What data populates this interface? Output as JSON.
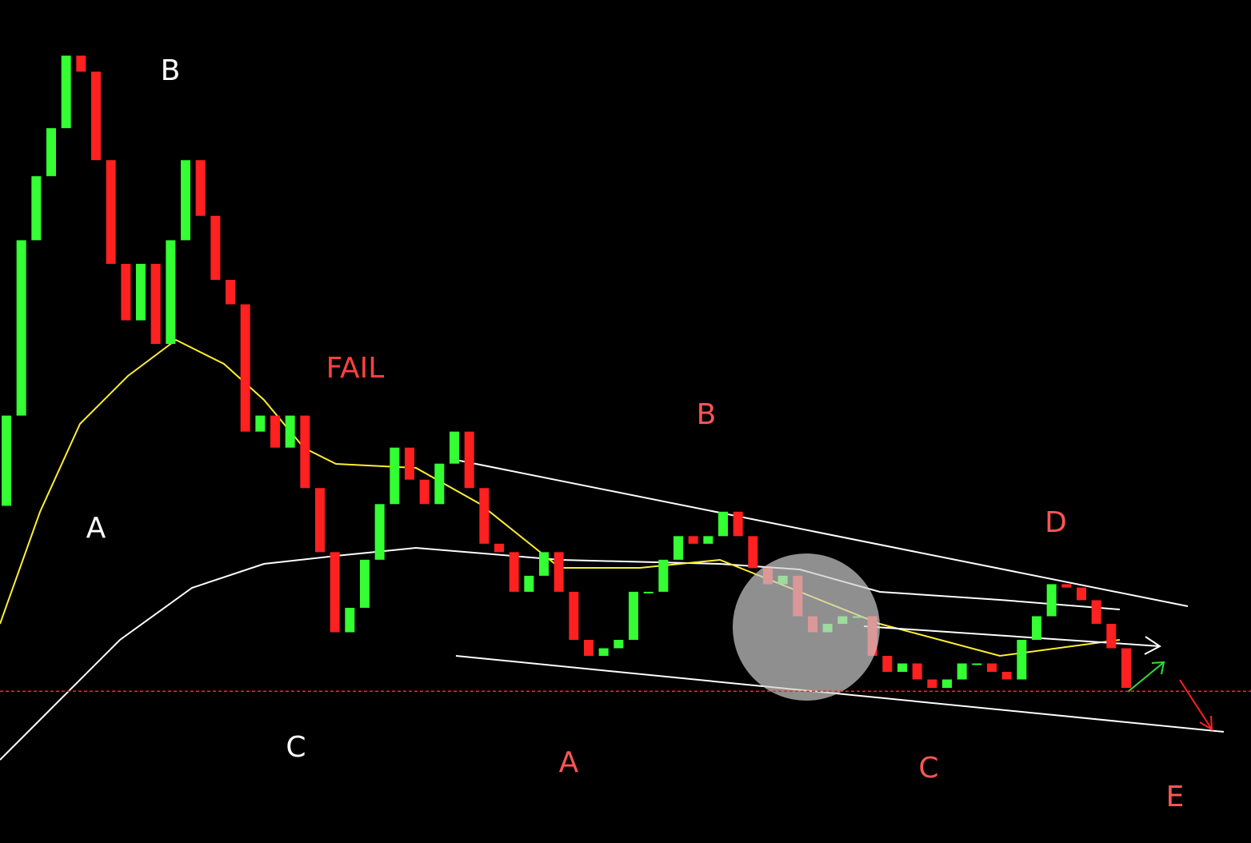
{
  "chart_data": {
    "type": "candlestick",
    "ylim": [
      0,
      100
    ],
    "up_color": "#33ff33",
    "down_color": "#ff2020",
    "open": [
      40.0,
      50.7,
      71.5,
      79.1,
      84.8,
      93.4,
      91.5,
      81.0,
      68.7,
      62.0,
      68.7,
      59.2,
      71.5,
      81.0,
      74.4,
      66.8,
      63.9,
      48.8,
      50.7,
      46.9,
      50.7,
      42.1,
      34.5,
      25.0,
      27.9,
      33.6,
      40.2,
      46.9,
      43.1,
      40.2,
      45.0,
      48.8,
      42.1,
      35.5,
      34.5,
      29.8,
      31.7,
      34.5,
      29.8,
      24.1,
      22.2,
      23.1,
      24.1,
      29.8,
      29.8,
      33.6,
      36.4,
      35.5,
      36.4,
      39.3,
      36.4,
      32.6,
      30.7,
      31.7,
      26.9,
      25.0,
      26.0,
      26.9,
      26.9,
      22.2,
      20.3,
      21.3,
      19.4,
      18.4,
      19.4,
      21.3,
      21.3,
      20.3,
      19.4,
      24.1,
      26.9,
      30.7,
      30.3,
      28.8,
      26.0,
      23.1
    ],
    "close": [
      50.7,
      71.5,
      79.1,
      84.8,
      93.4,
      91.5,
      81.0,
      68.7,
      62.0,
      68.7,
      59.2,
      71.5,
      81.0,
      74.4,
      66.8,
      63.9,
      48.8,
      50.7,
      46.9,
      50.7,
      42.1,
      34.5,
      25.0,
      27.9,
      33.6,
      40.2,
      46.9,
      43.1,
      40.2,
      45.0,
      48.8,
      42.1,
      35.5,
      34.5,
      29.8,
      31.7,
      34.5,
      29.8,
      24.1,
      22.2,
      23.1,
      24.1,
      29.8,
      29.8,
      33.6,
      36.4,
      35.5,
      36.4,
      39.3,
      36.4,
      32.6,
      30.7,
      31.7,
      26.9,
      25.0,
      26.0,
      26.9,
      26.9,
      22.2,
      20.3,
      21.3,
      19.4,
      18.4,
      19.4,
      21.3,
      21.3,
      20.3,
      19.4,
      24.1,
      26.9,
      30.7,
      30.3,
      28.8,
      26.0,
      23.1,
      18.4
    ],
    "reference_line": 18.0,
    "reference_color": "#ff2020",
    "annotations": [
      {
        "text": "B",
        "color": "#ffffff"
      },
      {
        "text": "A",
        "color": "#ffffff"
      },
      {
        "text": "C",
        "color": "#ffffff"
      },
      {
        "text": "FAIL",
        "color": "#ff4040"
      },
      {
        "text": "B",
        "color": "#ff5555"
      },
      {
        "text": "A",
        "color": "#ff5555"
      },
      {
        "text": "C",
        "color": "#ff5555"
      },
      {
        "text": "D",
        "color": "#ff5555"
      },
      {
        "text": "E",
        "color": "#ff5555"
      }
    ]
  }
}
